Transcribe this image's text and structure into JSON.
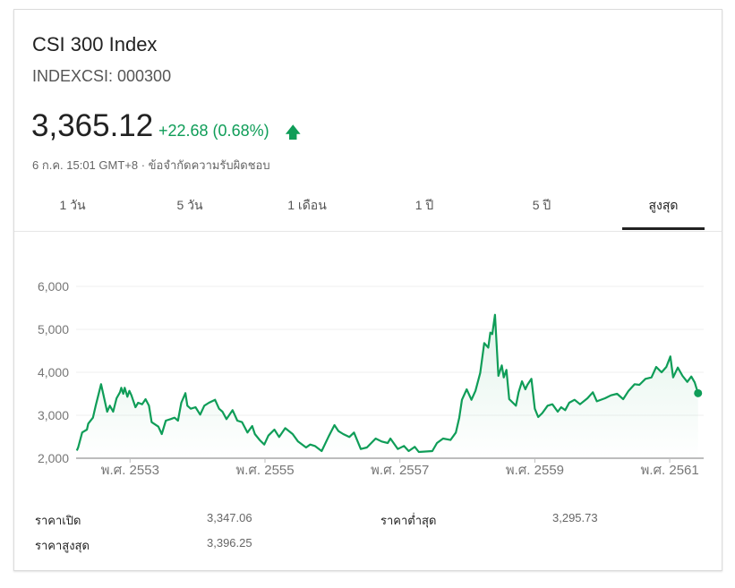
{
  "header": {
    "title": "CSI 300 Index",
    "ticker": "INDEXCSI: 000300",
    "price": "3,365.12",
    "change": "+22.68 (0.68%)",
    "change_icon": "arrow-up-icon",
    "dateline": "6 ก.ค. 15:01 GMT+8 · ข้อจำกัดความรับผิดชอบ"
  },
  "tabs": [
    {
      "label": "1 วัน"
    },
    {
      "label": "5 วัน"
    },
    {
      "label": "1 เดือน"
    },
    {
      "label": "1 ปี"
    },
    {
      "label": "5 ปี"
    },
    {
      "label": "สูงสุด",
      "selected": true
    }
  ],
  "colors": {
    "line": "#0f9d58",
    "up": "#0f9d58",
    "selected_tab": "#222222"
  },
  "stats": [
    {
      "label": "ราคาเปิด",
      "value": "3,347.06"
    },
    {
      "label": "ราคาสูงสุด",
      "value": "3,396.25"
    },
    {
      "label": "ราคาต่ำสุด",
      "value": "3,295.73"
    }
  ],
  "chart_data": {
    "type": "area",
    "xlabel": "",
    "ylabel": "",
    "ylim": [
      2000,
      6000
    ],
    "xlim": [
      2552.2,
      2561.45
    ],
    "grid": true,
    "yticks": [
      {
        "v": 6000,
        "label": "6,000"
      },
      {
        "v": 5000,
        "label": "5,000"
      },
      {
        "v": 4000,
        "label": "4,000"
      },
      {
        "v": 3000,
        "label": "3,000"
      },
      {
        "v": 2000,
        "label": "2,000"
      }
    ],
    "xticks": [
      {
        "v": 2553,
        "label": "พ.ศ. 2553"
      },
      {
        "v": 2555,
        "label": "พ.ศ. 2555"
      },
      {
        "v": 2557,
        "label": "พ.ศ. 2557"
      },
      {
        "v": 2559,
        "label": "พ.ศ. 2559"
      },
      {
        "v": 2561,
        "label": "พ.ศ. 2561"
      }
    ],
    "points": [
      [
        2552.21,
        2180
      ],
      [
        2552.23,
        2250
      ],
      [
        2552.29,
        2600
      ],
      [
        2552.36,
        2667
      ],
      [
        2552.38,
        2806
      ],
      [
        2552.45,
        2944
      ],
      [
        2552.49,
        3222
      ],
      [
        2552.57,
        3722
      ],
      [
        2552.66,
        3083
      ],
      [
        2552.7,
        3222
      ],
      [
        2552.75,
        3083
      ],
      [
        2552.8,
        3396
      ],
      [
        2552.85,
        3535
      ],
      [
        2552.87,
        3639
      ],
      [
        2552.9,
        3500
      ],
      [
        2552.92,
        3639
      ],
      [
        2552.96,
        3431
      ],
      [
        2552.99,
        3569
      ],
      [
        2553.02,
        3465
      ],
      [
        2553.08,
        3188
      ],
      [
        2553.12,
        3292
      ],
      [
        2553.18,
        3257
      ],
      [
        2553.23,
        3375
      ],
      [
        2553.28,
        3222
      ],
      [
        2553.32,
        2840
      ],
      [
        2553.42,
        2736
      ],
      [
        2553.47,
        2563
      ],
      [
        2553.53,
        2875
      ],
      [
        2553.6,
        2910
      ],
      [
        2553.66,
        2944
      ],
      [
        2553.71,
        2875
      ],
      [
        2553.76,
        3292
      ],
      [
        2553.82,
        3514
      ],
      [
        2553.85,
        3222
      ],
      [
        2553.9,
        3153
      ],
      [
        2553.97,
        3188
      ],
      [
        2554.04,
        3014
      ],
      [
        2554.1,
        3222
      ],
      [
        2554.17,
        3292
      ],
      [
        2554.26,
        3361
      ],
      [
        2554.32,
        3153
      ],
      [
        2554.37,
        3083
      ],
      [
        2554.43,
        2910
      ],
      [
        2554.52,
        3118
      ],
      [
        2554.59,
        2875
      ],
      [
        2554.66,
        2840
      ],
      [
        2554.74,
        2597
      ],
      [
        2554.81,
        2750
      ],
      [
        2554.85,
        2563
      ],
      [
        2554.92,
        2424
      ],
      [
        2554.99,
        2319
      ],
      [
        2555.05,
        2528
      ],
      [
        2555.14,
        2667
      ],
      [
        2555.21,
        2493
      ],
      [
        2555.3,
        2701
      ],
      [
        2555.41,
        2563
      ],
      [
        2555.49,
        2389
      ],
      [
        2555.61,
        2250
      ],
      [
        2555.67,
        2319
      ],
      [
        2555.74,
        2285
      ],
      [
        2555.84,
        2167
      ],
      [
        2555.94,
        2493
      ],
      [
        2556.03,
        2771
      ],
      [
        2556.09,
        2632
      ],
      [
        2556.16,
        2563
      ],
      [
        2556.25,
        2493
      ],
      [
        2556.32,
        2597
      ],
      [
        2556.42,
        2215
      ],
      [
        2556.51,
        2250
      ],
      [
        2556.64,
        2458
      ],
      [
        2556.73,
        2389
      ],
      [
        2556.82,
        2354
      ],
      [
        2556.86,
        2458
      ],
      [
        2556.97,
        2215
      ],
      [
        2557.06,
        2285
      ],
      [
        2557.13,
        2167
      ],
      [
        2557.22,
        2264
      ],
      [
        2557.28,
        2146
      ],
      [
        2557.48,
        2167
      ],
      [
        2557.55,
        2354
      ],
      [
        2557.64,
        2458
      ],
      [
        2557.75,
        2424
      ],
      [
        2557.83,
        2597
      ],
      [
        2557.88,
        2944
      ],
      [
        2557.92,
        3361
      ],
      [
        2557.99,
        3604
      ],
      [
        2558.06,
        3361
      ],
      [
        2558.12,
        3569
      ],
      [
        2558.19,
        3986
      ],
      [
        2558.25,
        4681
      ],
      [
        2558.31,
        4576
      ],
      [
        2558.34,
        4924
      ],
      [
        2558.37,
        4889
      ],
      [
        2558.41,
        5340
      ],
      [
        2558.46,
        3917
      ],
      [
        2558.51,
        4160
      ],
      [
        2558.54,
        3882
      ],
      [
        2558.58,
        4056
      ],
      [
        2558.62,
        3375
      ],
      [
        2558.72,
        3222
      ],
      [
        2558.76,
        3535
      ],
      [
        2558.81,
        3792
      ],
      [
        2558.86,
        3604
      ],
      [
        2558.89,
        3708
      ],
      [
        2558.95,
        3847
      ],
      [
        2559.0,
        3153
      ],
      [
        2559.05,
        2958
      ],
      [
        2559.11,
        3049
      ],
      [
        2559.19,
        3222
      ],
      [
        2559.26,
        3257
      ],
      [
        2559.34,
        3083
      ],
      [
        2559.39,
        3188
      ],
      [
        2559.45,
        3118
      ],
      [
        2559.51,
        3292
      ],
      [
        2559.59,
        3361
      ],
      [
        2559.67,
        3257
      ],
      [
        2559.78,
        3396
      ],
      [
        2559.86,
        3535
      ],
      [
        2559.92,
        3326
      ],
      [
        2560.04,
        3396
      ],
      [
        2560.13,
        3465
      ],
      [
        2560.22,
        3500
      ],
      [
        2560.31,
        3375
      ],
      [
        2560.39,
        3569
      ],
      [
        2560.48,
        3722
      ],
      [
        2560.55,
        3708
      ],
      [
        2560.64,
        3847
      ],
      [
        2560.73,
        3882
      ],
      [
        2560.8,
        4125
      ],
      [
        2560.88,
        4000
      ],
      [
        2560.95,
        4125
      ],
      [
        2561.01,
        4368
      ],
      [
        2561.05,
        3882
      ],
      [
        2561.12,
        4111
      ],
      [
        2561.19,
        3917
      ],
      [
        2561.26,
        3778
      ],
      [
        2561.32,
        3903
      ],
      [
        2561.37,
        3764
      ],
      [
        2561.42,
        3514
      ]
    ]
  }
}
